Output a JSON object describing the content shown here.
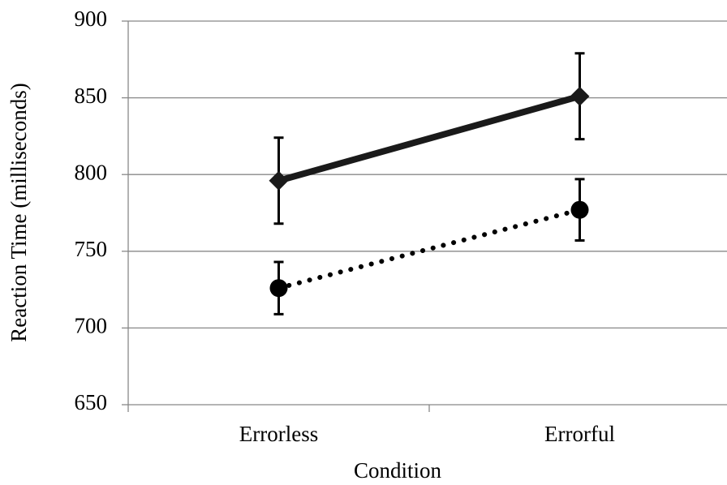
{
  "chart_data": {
    "type": "line",
    "xlabel": "Condition",
    "ylabel": "Reaction Time (milliseconds)",
    "categories": [
      "Errorless",
      "Errorful"
    ],
    "series": [
      {
        "color": "#1a1a1a",
        "marker": "diamond",
        "line_style": "solid",
        "values": [
          796,
          851
        ],
        "errors": [
          28,
          28
        ]
      },
      {
        "color": "#000000",
        "marker": "circle",
        "line_style": "dotted",
        "values": [
          726,
          777
        ],
        "errors": [
          17,
          20
        ]
      }
    ],
    "ylim": [
      650,
      900
    ],
    "yticks": [
      650,
      700,
      750,
      800,
      850,
      900
    ],
    "grid": true
  }
}
